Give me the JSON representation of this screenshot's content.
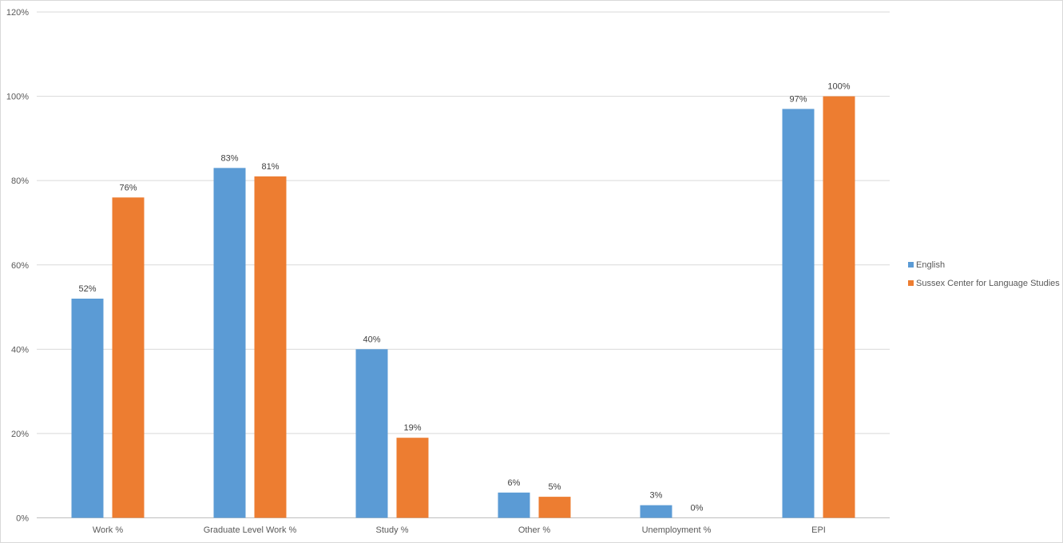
{
  "chart_data": {
    "type": "bar",
    "categories": [
      "Work %",
      "Graduate Level Work %",
      "Study %",
      "Other %",
      "Unemployment %",
      "EPI"
    ],
    "series": [
      {
        "name": "English",
        "values": [
          52,
          83,
          40,
          6,
          3,
          97
        ],
        "color": "#5b9bd5"
      },
      {
        "name": "Sussex Center for Language Studies",
        "values": [
          76,
          81,
          19,
          5,
          0,
          100
        ],
        "color": "#ed7d31"
      }
    ],
    "y_ticks": [
      "0%",
      "20%",
      "40%",
      "60%",
      "80%",
      "100%",
      "120%"
    ],
    "ylim": [
      0,
      120
    ],
    "grid": true,
    "legend_position": "right",
    "value_suffix": "%"
  }
}
